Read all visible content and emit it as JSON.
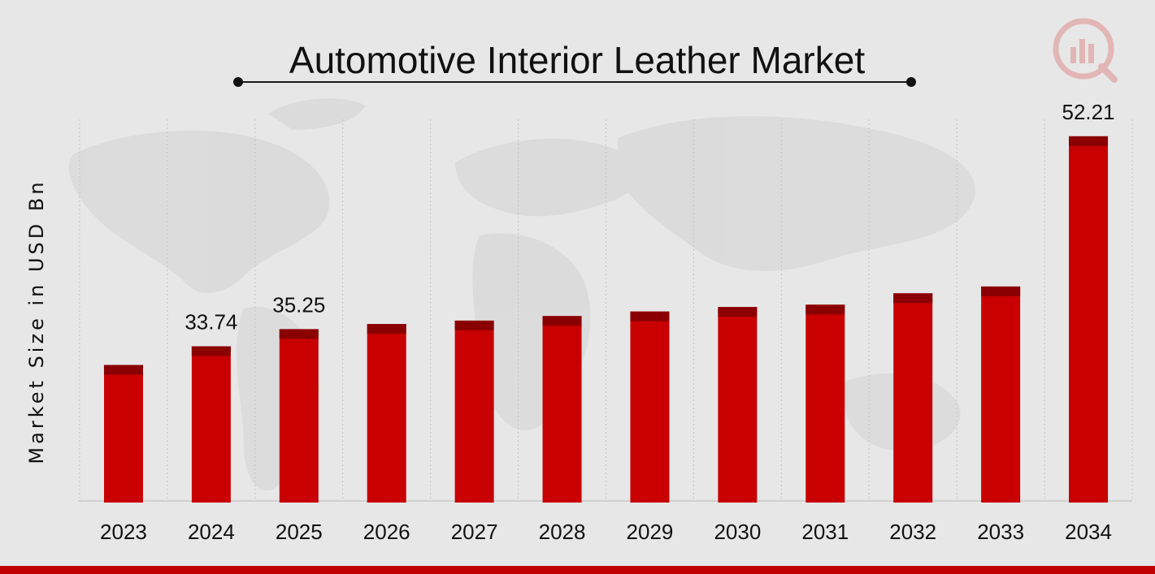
{
  "chart_data": {
    "type": "bar",
    "title": "Automotive Interior Leather Market",
    "xlabel": "",
    "ylabel": "Market Size in USD Bn",
    "categories": [
      "2023",
      "2024",
      "2025",
      "2026",
      "2027",
      "2028",
      "2029",
      "2030",
      "2031",
      "2032",
      "2033",
      "2034"
    ],
    "values": [
      32.1,
      33.74,
      35.25,
      35.7,
      36.0,
      36.4,
      36.8,
      37.2,
      37.4,
      38.4,
      39.0,
      52.21
    ],
    "data_labels": [
      "",
      "33.74",
      "35.25",
      "",
      "",
      "",
      "",
      "",
      "",
      "",
      "",
      "52.21"
    ],
    "ylim": [
      20,
      53.7
    ],
    "grid": "vertical-dotted",
    "legend": "none",
    "colors": {
      "bar": "#c80000",
      "bar_cap": "#8a0000",
      "footer": "#c00000",
      "axis": "#c8c8c8"
    }
  }
}
